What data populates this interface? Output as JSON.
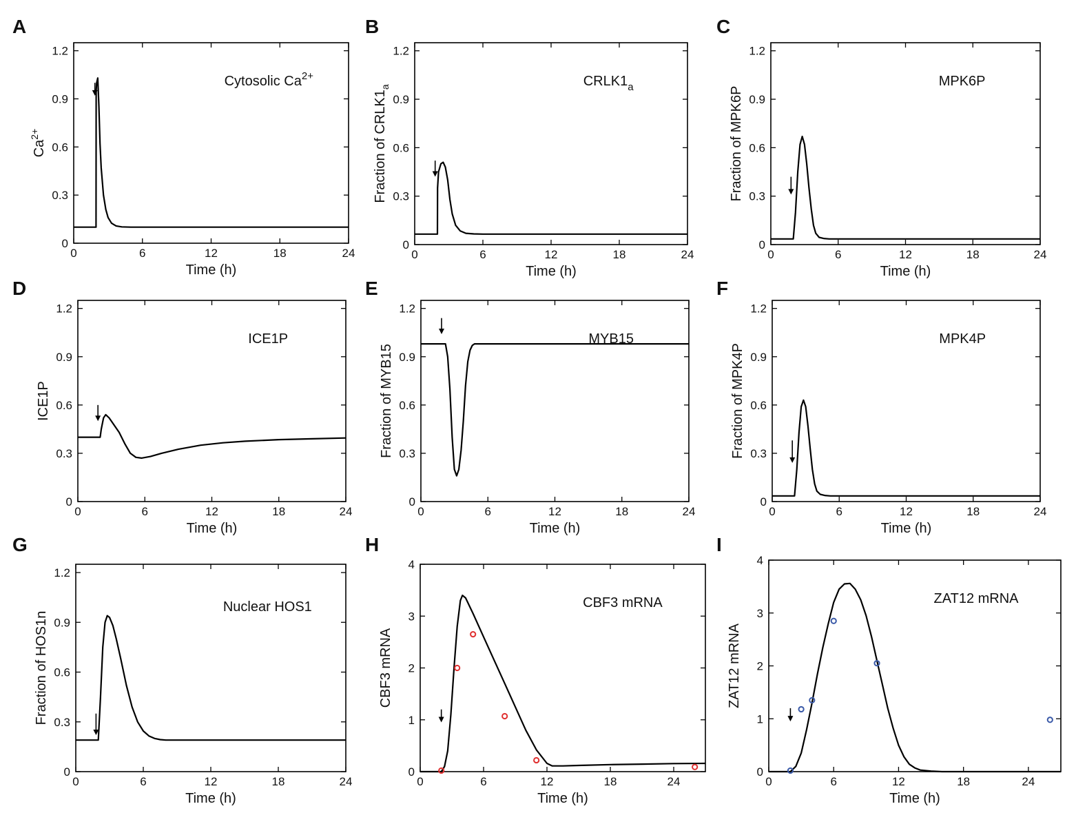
{
  "figure": {
    "panels": [
      {
        "letter": "A",
        "annotation": "Cytosolic Ca",
        "annotation_sup": "2+",
        "ylabel": "Ca",
        "ylabel_sup": "2+",
        "xlabel": "Time (h)"
      },
      {
        "letter": "B",
        "annotation": "CRLK1",
        "annotation_sub": "a",
        "ylabel": "Fraction of CRLK1",
        "ylabel_sub": "a",
        "xlabel": "Time (h)"
      },
      {
        "letter": "C",
        "annotation": "MPK6P",
        "ylabel": "Fraction of MPK6P",
        "xlabel": "Time (h)"
      },
      {
        "letter": "D",
        "annotation": "ICE1P",
        "ylabel": "ICE1P",
        "xlabel": "Time (h)"
      },
      {
        "letter": "E",
        "annotation": "MYB15",
        "ylabel": "Fraction of MYB15",
        "xlabel": "Time (h)"
      },
      {
        "letter": "F",
        "annotation": "MPK4P",
        "ylabel": "Fraction of MPK4P",
        "xlabel": "Time (h)"
      },
      {
        "letter": "G",
        "annotation": "Nuclear HOS1",
        "ylabel": "Fraction of HOS1n",
        "xlabel": "Time (h)"
      },
      {
        "letter": "H",
        "annotation": "CBF3 mRNA",
        "ylabel": "CBF3 mRNA",
        "xlabel": "Time (h)"
      },
      {
        "letter": "I",
        "annotation": "ZAT12 mRNA",
        "ylabel": "ZAT12 mRNA",
        "xlabel": "Time (h)"
      }
    ]
  },
  "chart_data": [
    {
      "panel": "A",
      "type": "line",
      "title": "Cytosolic Ca2+",
      "xlabel": "Time (h)",
      "ylabel": "Ca2+",
      "xlim": [
        0,
        24
      ],
      "ylim": [
        0,
        1.25
      ],
      "xticks": [
        0,
        6,
        12,
        18,
        24
      ],
      "yticks": [
        0,
        0.3,
        0.6,
        0.9,
        1.2
      ],
      "xtick_labels": [
        "0",
        "6",
        "12",
        "18",
        "24"
      ],
      "ytick_labels": [
        "0",
        "0.3",
        "0.6",
        "0.9",
        "1.2"
      ],
      "stimulus_arrow": {
        "x": 1.85,
        "y_top": 1.0,
        "y_tip": 0.92
      },
      "series": [
        {
          "name": "model",
          "x": [
            0,
            1.95,
            1.96,
            2.0,
            2.1,
            2.2,
            2.3,
            2.4,
            2.6,
            2.8,
            3.0,
            3.3,
            3.7,
            4.2,
            5.0,
            24
          ],
          "y": [
            0.1,
            0.1,
            0.95,
            1.0,
            1.03,
            0.85,
            0.62,
            0.47,
            0.3,
            0.21,
            0.16,
            0.125,
            0.108,
            0.102,
            0.1,
            0.1
          ]
        }
      ]
    },
    {
      "panel": "B",
      "type": "line",
      "title": "CRLK1a",
      "xlabel": "Time (h)",
      "ylabel": "Fraction of CRLK1a",
      "xlim": [
        0,
        24
      ],
      "ylim": [
        0,
        1.25
      ],
      "xticks": [
        0,
        6,
        12,
        18,
        24
      ],
      "yticks": [
        0,
        0.3,
        0.6,
        0.9,
        1.2
      ],
      "xtick_labels": [
        "0",
        "6",
        "12",
        "18",
        "24"
      ],
      "ytick_labels": [
        "0",
        "0.3",
        "0.6",
        "0.9",
        "1.2"
      ],
      "stimulus_arrow": {
        "x": 1.8,
        "y_top": 0.52,
        "y_tip": 0.42
      },
      "series": [
        {
          "name": "model",
          "x": [
            0,
            2.0,
            2.01,
            2.1,
            2.3,
            2.5,
            2.7,
            2.9,
            3.1,
            3.3,
            3.6,
            4.0,
            4.5,
            5.2,
            6.0,
            24
          ],
          "y": [
            0.065,
            0.065,
            0.35,
            0.45,
            0.5,
            0.51,
            0.48,
            0.4,
            0.28,
            0.19,
            0.12,
            0.085,
            0.07,
            0.066,
            0.065,
            0.065
          ]
        }
      ]
    },
    {
      "panel": "C",
      "type": "line",
      "title": "MPK6P",
      "xlabel": "Time (h)",
      "ylabel": "Fraction of MPK6P",
      "xlim": [
        0,
        24
      ],
      "ylim": [
        0,
        1.25
      ],
      "xticks": [
        0,
        6,
        12,
        18,
        24
      ],
      "yticks": [
        0,
        0.3,
        0.6,
        0.9,
        1.2
      ],
      "xtick_labels": [
        "0",
        "6",
        "12",
        "18",
        "24"
      ],
      "ytick_labels": [
        "0",
        "0.3",
        "0.6",
        "0.9",
        "1.2"
      ],
      "stimulus_arrow": {
        "x": 1.8,
        "y_top": 0.42,
        "y_tip": 0.31
      },
      "series": [
        {
          "name": "model",
          "x": [
            0,
            2.0,
            2.2,
            2.4,
            2.6,
            2.8,
            3.0,
            3.2,
            3.4,
            3.6,
            3.8,
            4.0,
            4.3,
            4.7,
            5.2,
            24
          ],
          "y": [
            0.035,
            0.035,
            0.2,
            0.45,
            0.62,
            0.67,
            0.62,
            0.5,
            0.35,
            0.22,
            0.12,
            0.07,
            0.045,
            0.038,
            0.035,
            0.035
          ]
        }
      ]
    },
    {
      "panel": "D",
      "type": "line",
      "title": "ICE1P",
      "xlabel": "Time (h)",
      "ylabel": "ICE1P",
      "xlim": [
        0,
        24
      ],
      "ylim": [
        0,
        1.25
      ],
      "xticks": [
        0,
        6,
        12,
        18,
        24
      ],
      "yticks": [
        0,
        0.3,
        0.6,
        0.9,
        1.2
      ],
      "xtick_labels": [
        "0",
        "6",
        "12",
        "18",
        "24"
      ],
      "ytick_labels": [
        "0",
        "0.3",
        "0.6",
        "0.9",
        "1.2"
      ],
      "stimulus_arrow": {
        "x": 1.8,
        "y_top": 0.6,
        "y_tip": 0.5
      },
      "series": [
        {
          "name": "model",
          "x": [
            0,
            2.0,
            2.1,
            2.3,
            2.5,
            2.8,
            3.2,
            3.7,
            4.2,
            4.7,
            5.2,
            5.7,
            6.5,
            7.5,
            9.0,
            11.0,
            13.0,
            15.0,
            18.0,
            21.0,
            24.0
          ],
          "y": [
            0.4,
            0.4,
            0.45,
            0.52,
            0.54,
            0.52,
            0.48,
            0.43,
            0.36,
            0.3,
            0.275,
            0.27,
            0.28,
            0.3,
            0.325,
            0.35,
            0.365,
            0.375,
            0.385,
            0.39,
            0.395
          ]
        }
      ]
    },
    {
      "panel": "E",
      "type": "line",
      "title": "MYB15",
      "xlabel": "Time (h)",
      "ylabel": "Fraction of MYB15",
      "xlim": [
        0,
        24
      ],
      "ylim": [
        0,
        1.25
      ],
      "xticks": [
        0,
        6,
        12,
        18,
        24
      ],
      "yticks": [
        0,
        0.3,
        0.6,
        0.9,
        1.2
      ],
      "xtick_labels": [
        "0",
        "6",
        "12",
        "18",
        "24"
      ],
      "ytick_labels": [
        "0",
        "0.3",
        "0.6",
        "0.9",
        "1.2"
      ],
      "stimulus_arrow": {
        "x": 1.85,
        "y_top": 1.14,
        "y_tip": 1.04
      },
      "series": [
        {
          "name": "model",
          "x": [
            0,
            2.2,
            2.4,
            2.6,
            2.8,
            3.0,
            3.2,
            3.4,
            3.6,
            3.8,
            4.0,
            4.2,
            4.4,
            4.6,
            4.8,
            5.2,
            6.0,
            24
          ],
          "y": [
            0.98,
            0.98,
            0.9,
            0.7,
            0.4,
            0.2,
            0.16,
            0.2,
            0.32,
            0.5,
            0.72,
            0.87,
            0.94,
            0.97,
            0.98,
            0.98,
            0.98,
            0.98
          ]
        }
      ]
    },
    {
      "panel": "F",
      "type": "line",
      "title": "MPK4P",
      "xlabel": "Time (h)",
      "ylabel": "Fraction of MPK4P",
      "xlim": [
        0,
        24
      ],
      "ylim": [
        0,
        1.25
      ],
      "xticks": [
        0,
        6,
        12,
        18,
        24
      ],
      "yticks": [
        0,
        0.3,
        0.6,
        0.9,
        1.2
      ],
      "xtick_labels": [
        "0",
        "6",
        "12",
        "18",
        "24"
      ],
      "ytick_labels": [
        "0",
        "0.3",
        "0.6",
        "0.9",
        "1.2"
      ],
      "stimulus_arrow": {
        "x": 1.8,
        "y_top": 0.38,
        "y_tip": 0.24
      },
      "series": [
        {
          "name": "model",
          "x": [
            0,
            2.0,
            2.2,
            2.4,
            2.6,
            2.8,
            3.0,
            3.2,
            3.4,
            3.6,
            3.8,
            4.0,
            4.3,
            4.7,
            5.2,
            24
          ],
          "y": [
            0.035,
            0.035,
            0.2,
            0.43,
            0.59,
            0.63,
            0.59,
            0.47,
            0.33,
            0.2,
            0.11,
            0.065,
            0.045,
            0.038,
            0.035,
            0.035
          ]
        }
      ]
    },
    {
      "panel": "G",
      "type": "line",
      "title": "Nuclear HOS1",
      "xlabel": "Time (h)",
      "ylabel": "Fraction of HOS1n",
      "xlim": [
        0,
        24
      ],
      "ylim": [
        0,
        1.25
      ],
      "xticks": [
        0,
        6,
        12,
        18,
        24
      ],
      "yticks": [
        0,
        0.3,
        0.6,
        0.9,
        1.2
      ],
      "xtick_labels": [
        "0",
        "6",
        "12",
        "18",
        "24"
      ],
      "ytick_labels": [
        "0",
        "0.3",
        "0.6",
        "0.9",
        "1.2"
      ],
      "stimulus_arrow": {
        "x": 1.8,
        "y_top": 0.35,
        "y_tip": 0.22
      },
      "series": [
        {
          "name": "model",
          "x": [
            0,
            2.0,
            2.2,
            2.4,
            2.6,
            2.8,
            3.0,
            3.3,
            3.6,
            4.0,
            4.5,
            5.0,
            5.5,
            6.0,
            6.5,
            7.0,
            7.5,
            8.0,
            9.0,
            10.0,
            24.0
          ],
          "y": [
            0.19,
            0.19,
            0.45,
            0.75,
            0.9,
            0.94,
            0.93,
            0.88,
            0.8,
            0.68,
            0.52,
            0.39,
            0.3,
            0.245,
            0.215,
            0.2,
            0.193,
            0.19,
            0.19,
            0.19,
            0.19
          ]
        }
      ]
    },
    {
      "panel": "H",
      "type": "line",
      "title": "CBF3 mRNA",
      "xlabel": "Time (h)",
      "ylabel": "CBF3 mRNA",
      "xlim": [
        0,
        27
      ],
      "ylim": [
        0,
        4
      ],
      "xticks": [
        0,
        6,
        12,
        18,
        24
      ],
      "yticks": [
        0,
        1,
        2,
        3,
        4
      ],
      "xtick_labels": [
        "0",
        "6",
        "12",
        "18",
        "24"
      ],
      "ytick_labels": [
        "0",
        "1",
        "2",
        "3",
        "4"
      ],
      "stimulus_arrow": {
        "x": 2.0,
        "y_top": 1.2,
        "y_tip": 0.95
      },
      "series": [
        {
          "name": "model",
          "x": [
            0,
            2.0,
            2.3,
            2.6,
            2.9,
            3.2,
            3.5,
            3.8,
            4.0,
            4.3,
            5.0,
            6.0,
            7.0,
            8.0,
            9.0,
            10.0,
            11.0,
            12.0,
            12.5,
            13.5,
            15.0,
            18.0,
            21.0,
            24.0,
            27.0
          ],
          "y": [
            0.0,
            0.0,
            0.1,
            0.4,
            1.1,
            2.0,
            2.8,
            3.3,
            3.4,
            3.35,
            3.05,
            2.6,
            2.15,
            1.7,
            1.25,
            0.8,
            0.42,
            0.16,
            0.11,
            0.11,
            0.12,
            0.135,
            0.145,
            0.155,
            0.16
          ]
        },
        {
          "name": "data",
          "type": "scatter",
          "color": "#e03030",
          "x": [
            2.0,
            3.5,
            5.0,
            8.0,
            11.0,
            26.0
          ],
          "y": [
            0.02,
            2.0,
            2.65,
            1.07,
            0.22,
            0.09
          ]
        }
      ]
    },
    {
      "panel": "I",
      "type": "line",
      "title": "ZAT12 mRNA",
      "xlabel": "Time (h)",
      "ylabel": "ZAT12 mRNA",
      "xlim": [
        0,
        27
      ],
      "ylim": [
        0,
        4
      ],
      "xticks": [
        0,
        6,
        12,
        18,
        24
      ],
      "yticks": [
        0,
        1,
        2,
        3,
        4
      ],
      "xtick_labels": [
        "0",
        "6",
        "12",
        "18",
        "24"
      ],
      "ytick_labels": [
        "0",
        "1",
        "2",
        "3",
        "4"
      ],
      "stimulus_arrow": {
        "x": 2.0,
        "y_top": 1.2,
        "y_tip": 0.95
      },
      "series": [
        {
          "name": "model",
          "x": [
            0,
            2.0,
            2.5,
            3.0,
            3.5,
            4.0,
            4.5,
            5.0,
            5.5,
            6.0,
            6.5,
            7.0,
            7.5,
            8.0,
            8.5,
            9.0,
            9.5,
            10.0,
            10.5,
            11.0,
            11.5,
            12.0,
            12.5,
            13.0,
            13.5,
            14.0,
            15.0,
            16.0,
            18.0,
            27.0
          ],
          "y": [
            0.0,
            0.0,
            0.1,
            0.35,
            0.8,
            1.3,
            1.85,
            2.35,
            2.8,
            3.2,
            3.45,
            3.55,
            3.56,
            3.45,
            3.25,
            2.95,
            2.55,
            2.1,
            1.65,
            1.2,
            0.82,
            0.5,
            0.28,
            0.14,
            0.07,
            0.03,
            0.01,
            0.0,
            0.0,
            0.0
          ]
        },
        {
          "name": "data",
          "type": "scatter",
          "color": "#3a5aa8",
          "x": [
            2.0,
            3.0,
            4.0,
            6.0,
            10.0,
            26.0
          ],
          "y": [
            0.02,
            1.18,
            1.35,
            2.85,
            2.05,
            0.98
          ]
        }
      ]
    }
  ]
}
